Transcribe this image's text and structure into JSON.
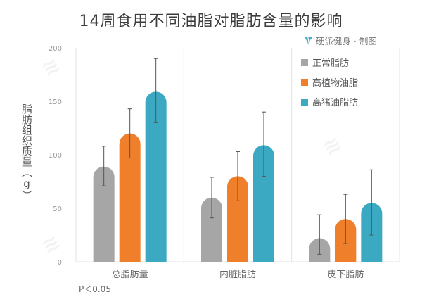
{
  "title": "14周食用不同油脂对脂肪含量的影响",
  "credit": "硬派健身 · 制图",
  "note": "P＜0.05",
  "chart_data": {
    "type": "bar",
    "title": "14周食用不同油脂对脂肪含量的影响",
    "xlabel": "",
    "ylabel": "脂肪组织质量（g）",
    "ylim": [
      0,
      200
    ],
    "yticks": [
      0,
      50,
      100,
      150,
      200
    ],
    "categories": [
      "总脂肪量",
      "内脏脂肪",
      "皮下脂肪"
    ],
    "series": [
      {
        "name": "正常脂肪",
        "color": "#a6a6a6",
        "values": [
          89,
          60,
          22
        ],
        "error_low": [
          71,
          41,
          7
        ],
        "error_high": [
          108,
          79,
          44
        ]
      },
      {
        "name": "高植物油脂",
        "color": "#f07f2c",
        "values": [
          120,
          80,
          40
        ],
        "error_low": [
          97,
          57,
          17
        ],
        "error_high": [
          143,
          103,
          63
        ]
      },
      {
        "name": "高猪油脂肪",
        "color": "#3ba9c2",
        "values": [
          159,
          109,
          55
        ],
        "error_low": [
          130,
          80,
          25
        ],
        "error_high": [
          190,
          140,
          86
        ]
      }
    ],
    "grid": false,
    "legend": "top-right"
  }
}
